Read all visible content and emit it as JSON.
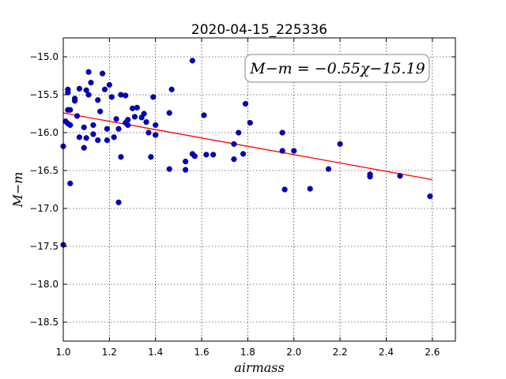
{
  "chart_data": {
    "type": "scatter",
    "title": "2020-04-15_225336",
    "xlabel": "airmass",
    "ylabel": "M−m",
    "xlim": [
      1.0,
      2.7
    ],
    "ylim": [
      -18.75,
      -14.75
    ],
    "y_inverted": false,
    "grid": true,
    "x_ticks": [
      1.0,
      1.2,
      1.4,
      1.6,
      1.8,
      2.0,
      2.2,
      2.4,
      2.6
    ],
    "x_tick_labels": [
      "1.0",
      "1.2",
      "1.4",
      "1.6",
      "1.8",
      "2.0",
      "2.2",
      "2.4",
      "2.6"
    ],
    "y_ticks": [
      -15.0,
      -15.5,
      -16.0,
      -16.5,
      -17.0,
      -17.5,
      -18.0,
      -18.5
    ],
    "y_tick_labels": [
      "−15.0",
      "−15.5",
      "−16.0",
      "−16.5",
      "−17.0",
      "−17.5",
      "−18.0",
      "−18.5"
    ],
    "annotation": "M−m = −0.55χ−15.19",
    "annotation_position": "top-right",
    "fit_line": {
      "slope": -0.55,
      "intercept": -15.19,
      "x_start": 1.0,
      "x_end": 2.6,
      "color": "#ff0000"
    },
    "point_color": "#0000cc",
    "series": [
      {
        "x": [
          1.0,
          1.0,
          1.01,
          1.02,
          1.02,
          1.02,
          1.02,
          1.03,
          1.03,
          1.03,
          1.05,
          1.05,
          1.06,
          1.07,
          1.07,
          1.09,
          1.09,
          1.1,
          1.1,
          1.11,
          1.11,
          1.12,
          1.13,
          1.13,
          1.15,
          1.15,
          1.16,
          1.17,
          1.18,
          1.19,
          1.19,
          1.2,
          1.21,
          1.22,
          1.23,
          1.24,
          1.24,
          1.25,
          1.25,
          1.27,
          1.27,
          1.28,
          1.28,
          1.3,
          1.31,
          1.32,
          1.34,
          1.35,
          1.36,
          1.37,
          1.38,
          1.39,
          1.4,
          1.4,
          1.4,
          1.46,
          1.46,
          1.47,
          1.53,
          1.53,
          1.56,
          1.56,
          1.57,
          1.61,
          1.62,
          1.65,
          1.74,
          1.74,
          1.76,
          1.78,
          1.79,
          1.81,
          1.95,
          1.95,
          1.96,
          2.0,
          2.07,
          2.15,
          2.2,
          2.33,
          2.33,
          2.46,
          2.59
        ],
        "y": [
          -17.48,
          -16.18,
          -15.85,
          -15.7,
          -15.88,
          -15.43,
          -15.47,
          -15.9,
          -15.7,
          -16.67,
          -15.55,
          -15.58,
          -15.78,
          -16.06,
          -15.42,
          -15.93,
          -16.2,
          -16.07,
          -15.44,
          -15.2,
          -15.5,
          -15.34,
          -16.02,
          -15.9,
          -16.1,
          -15.57,
          -15.72,
          -15.22,
          -15.43,
          -15.95,
          -16.1,
          -15.37,
          -15.53,
          -16.06,
          -15.82,
          -15.95,
          -16.92,
          -15.5,
          -16.32,
          -15.51,
          -15.87,
          -15.83,
          -15.9,
          -15.68,
          -15.79,
          -15.67,
          -15.8,
          -15.75,
          -15.86,
          -16.0,
          -16.32,
          -15.53,
          -15.9,
          -16.03,
          -16.03,
          -15.74,
          -16.48,
          -15.43,
          -16.38,
          -16.49,
          -15.05,
          -16.28,
          -16.31,
          -15.77,
          -16.29,
          -16.29,
          -16.35,
          -16.15,
          -16.0,
          -16.28,
          -15.62,
          -15.87,
          -16.0,
          -16.24,
          -16.75,
          -16.24,
          -16.74,
          -16.48,
          -16.15,
          -16.55,
          -16.58,
          -16.57,
          -16.84
        ]
      }
    ]
  }
}
